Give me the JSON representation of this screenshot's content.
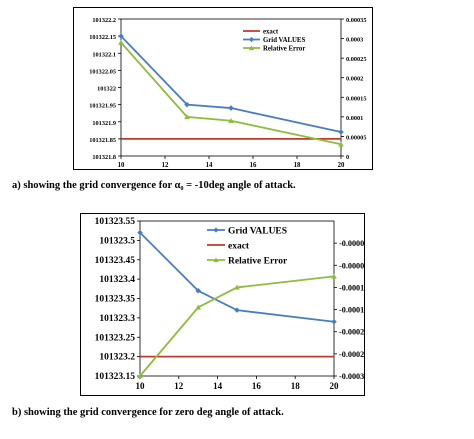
{
  "chart_data": [
    {
      "type": "line",
      "x": [
        10,
        13,
        15,
        20
      ],
      "xlim": [
        10,
        20
      ],
      "xticks": [
        "10",
        "12",
        "14",
        "16",
        "18",
        "20"
      ],
      "ylim_left": [
        101321.8,
        101322.2
      ],
      "yticks_left": [
        "101322.2",
        "101322.15",
        "101322.1",
        "101322.05",
        "101322",
        "101321.95",
        "101321.9",
        "101321.85",
        "101321.8"
      ],
      "ylim_right": [
        0,
        0.00035
      ],
      "yticks_right": [
        "0.00035",
        "0.0003",
        "0.00025",
        "0.0002",
        "0.00015",
        "0.0001",
        "0.00005",
        "0"
      ],
      "legend_position": "top-right",
      "series": [
        {
          "name": "exact",
          "axis": "left",
          "color": "#c0392b",
          "marker": "none",
          "values": [
            101321.85,
            101321.85,
            101321.85,
            101321.85
          ]
        },
        {
          "name": "Grid VALUES",
          "axis": "left",
          "color": "#4a7ebb",
          "marker": "diamond",
          "values": [
            101322.15,
            101321.95,
            101321.94,
            101321.87
          ]
        },
        {
          "name": "Relative Error",
          "axis": "right",
          "color": "#8fbc3f",
          "marker": "triangle",
          "values": [
            0.00029,
            0.0001,
            9e-05,
            3e-05
          ]
        }
      ],
      "legend_order": [
        "exact",
        "Grid VALUES",
        "Relative Error"
      ]
    },
    {
      "type": "line",
      "x": [
        10,
        13,
        15,
        20
      ],
      "xlim": [
        10,
        20
      ],
      "xticks": [
        "10",
        "12",
        "14",
        "16",
        "18",
        "20"
      ],
      "ylim_left": [
        101323.15,
        101323.55
      ],
      "yticks_left": [
        "101323.55",
        "101323.5",
        "101323.45",
        "101323.4",
        "101323.35",
        "101323.3",
        "101323.25",
        "101323.2",
        "101323.15"
      ],
      "ylim_right": [
        -0.00032,
        3e-05
      ],
      "yticks_right": [
        "-0.00032",
        "-0.00027",
        "-0.00022",
        "-0.00017",
        "-0.00012",
        "-0.00007",
        "-0.00002"
      ],
      "legend_position": "top-right",
      "series": [
        {
          "name": "Grid VALUES",
          "axis": "left",
          "color": "#4a7ebb",
          "marker": "diamond",
          "values": [
            101323.52,
            101323.37,
            101323.32,
            101323.29
          ]
        },
        {
          "name": "exact",
          "axis": "left",
          "color": "#c0392b",
          "marker": "none",
          "values": [
            101323.2,
            101323.2,
            101323.2,
            101323.2
          ]
        },
        {
          "name": "Relative Error",
          "axis": "right",
          "color": "#8fbc3f",
          "marker": "triangle",
          "values": [
            -0.00032,
            -0.000165,
            -0.00012,
            -9.5e-05
          ]
        }
      ],
      "legend_order": [
        "Grid VALUES",
        "exact",
        "Relative Error"
      ]
    }
  ],
  "captions": {
    "a": "a)    showing the grid convergence for α₀ = -10deg angle of attack.",
    "b": "b) showing the grid convergence for zero deg angle of attack."
  }
}
